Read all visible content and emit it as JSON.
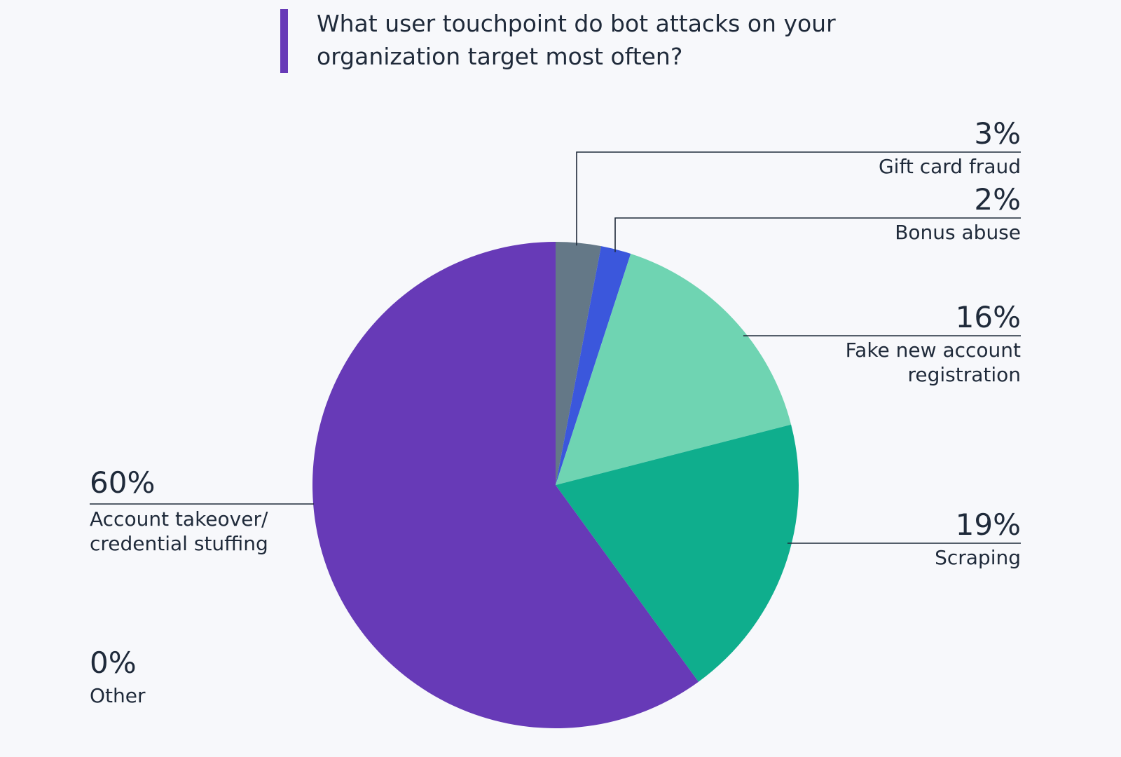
{
  "title": "What user touchpoint do bot attacks on your organization target most often?",
  "colors": {
    "accent": "#673ab7",
    "text": "#1f2a3a",
    "background": "#f7f8fb"
  },
  "chart_data": {
    "type": "pie",
    "title": "What user touchpoint do bot attacks on your organization target most often?",
    "slices": [
      {
        "label": "Gift card fraud",
        "label_lines": [
          "Gift card fraud"
        ],
        "value": 3,
        "display": "3%",
        "color": "#647887"
      },
      {
        "label": "Bonus abuse",
        "label_lines": [
          "Bonus abuse"
        ],
        "value": 2,
        "display": "2%",
        "color": "#3b57dc"
      },
      {
        "label": "Fake new account registration",
        "label_lines": [
          "Fake new account",
          "registration"
        ],
        "value": 16,
        "display": "16%",
        "color": "#6fd4b2"
      },
      {
        "label": "Scraping",
        "label_lines": [
          "Scraping"
        ],
        "value": 19,
        "display": "19%",
        "color": "#0fae8d"
      },
      {
        "label": "Account takeover/ credential stuffing",
        "label_lines": [
          "Account takeover/",
          "credential stuffing"
        ],
        "value": 60,
        "display": "60%",
        "color": "#673ab7"
      },
      {
        "label": "Other",
        "label_lines": [
          "Other"
        ],
        "value": 0,
        "display": "0%",
        "color": "#9e9e9e"
      }
    ]
  }
}
